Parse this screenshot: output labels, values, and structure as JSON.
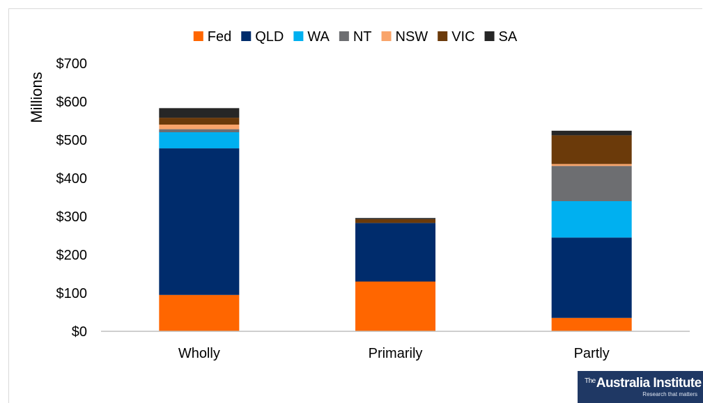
{
  "chart_data": {
    "type": "bar",
    "stacked": true,
    "ylabel": "Millions",
    "xlabel": "",
    "ylim": [
      0,
      700
    ],
    "yticks": [
      0,
      100,
      200,
      300,
      400,
      500,
      600,
      700
    ],
    "ytick_labels": [
      "$0",
      "$100",
      "$200",
      "$300",
      "$400",
      "$500",
      "$600",
      "$700"
    ],
    "categories": [
      "Wholly",
      "Primarily",
      "Partly"
    ],
    "legend_position": "top",
    "grid": false,
    "series": [
      {
        "name": "Fed",
        "color": "#ff6600",
        "values": [
          95,
          130,
          35
        ]
      },
      {
        "name": "QLD",
        "color": "#002c6c",
        "values": [
          383,
          153,
          210
        ]
      },
      {
        "name": "WA",
        "color": "#00b0f0",
        "values": [
          42,
          0,
          95
        ]
      },
      {
        "name": "NT",
        "color": "#6d6e71",
        "values": [
          8,
          0,
          92
        ]
      },
      {
        "name": "NSW",
        "color": "#f9a46a",
        "values": [
          12,
          0,
          5
        ]
      },
      {
        "name": "VIC",
        "color": "#6b3a0a",
        "values": [
          18,
          10,
          75
        ]
      },
      {
        "name": "SA",
        "color": "#262626",
        "values": [
          25,
          3,
          12
        ]
      }
    ]
  },
  "logo": {
    "the": "The",
    "name": "Australia Institute",
    "tagline": "Research that matters"
  }
}
